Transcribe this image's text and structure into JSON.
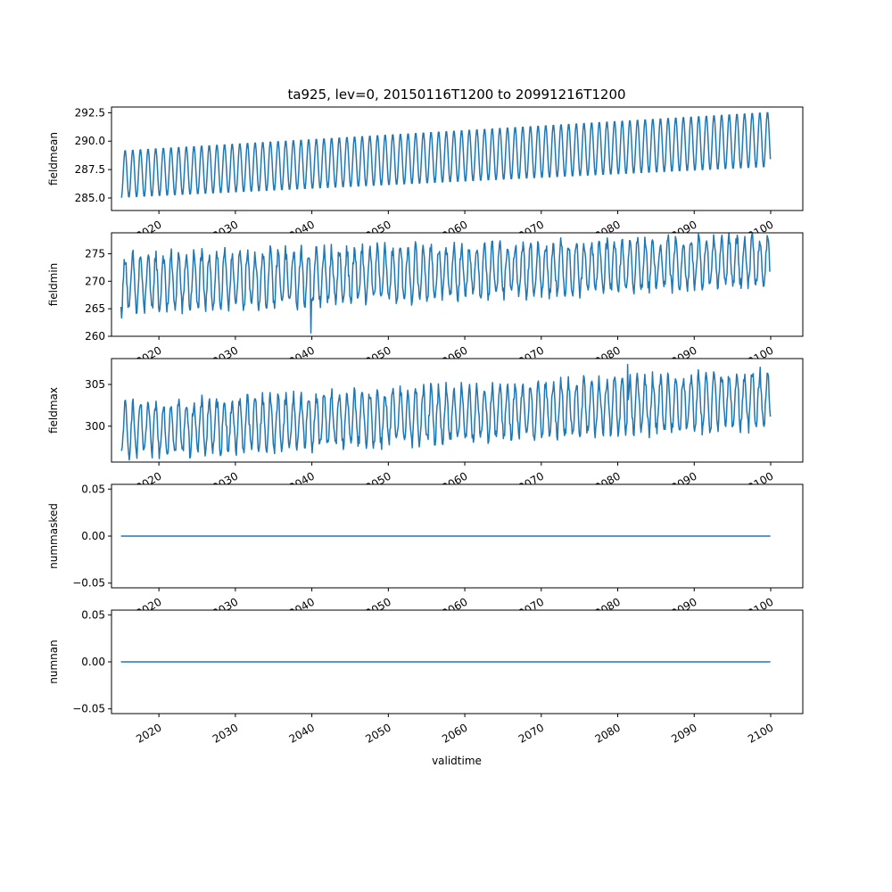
{
  "figure": {
    "title": "ta925, lev=0, 20150116T1200 to 20991216T1200",
    "xlabel": "validtime",
    "x_tick_labels": [
      "2020",
      "2030",
      "2040",
      "2050",
      "2060",
      "2070",
      "2080",
      "2090",
      "2100"
    ],
    "line_color": "#1f77b4"
  },
  "chart_data": [
    {
      "type": "line",
      "ylabel": "fieldmean",
      "xlim": [
        2013.8,
        2104.2
      ],
      "ylim": [
        283.9,
        293.0
      ],
      "yticks": [
        "285.0",
        "287.5",
        "290.0",
        "292.5"
      ],
      "ytick_values": [
        285.0,
        287.5,
        290.0,
        292.5
      ],
      "series": [
        {
          "values": {
            "start_year": 2015.04,
            "end_year": 2099.96,
            "min_first": 285.0,
            "min_last": 287.7,
            "max_first": 289.2,
            "max_last": 292.6
          }
        }
      ]
    },
    {
      "type": "line",
      "ylabel": "fieldmin",
      "xlim": [
        2013.8,
        2104.2
      ],
      "ylim": [
        260.0,
        278.8
      ],
      "yticks": [
        "260",
        "265",
        "270",
        "275"
      ],
      "ytick_values": [
        260,
        265,
        270,
        275
      ],
      "series": [
        {
          "values": {
            "start_year": 2015.04,
            "end_year": 2099.96,
            "min_first": 264.5,
            "min_last": 269.5,
            "max_first": 274.5,
            "max_last": 278.0,
            "lowest": 260.6,
            "lowest_year": 2039.9
          }
        }
      ]
    },
    {
      "type": "line",
      "ylabel": "fieldmax",
      "xlim": [
        2013.8,
        2104.2
      ],
      "ylim": [
        295.7,
        308.1
      ],
      "yticks": [
        "300",
        "305"
      ],
      "ytick_values": [
        300,
        305
      ],
      "series": [
        {
          "values": {
            "start_year": 2015.04,
            "end_year": 2099.96,
            "min_first": 296.5,
            "min_last": 300.0,
            "max_first": 302.5,
            "max_last": 306.5,
            "highest": 307.4,
            "highest_year": 2081.3
          }
        }
      ]
    },
    {
      "type": "line",
      "ylabel": "nummasked",
      "xlim": [
        2013.8,
        2104.2
      ],
      "ylim": [
        -0.055,
        0.055
      ],
      "yticks": [
        "−0.05",
        "0.00",
        "0.05"
      ],
      "ytick_values": [
        -0.05,
        0.0,
        0.05
      ],
      "series": [
        {
          "x": [
            2015.04,
            2099.96
          ],
          "values": [
            0,
            0
          ]
        }
      ]
    },
    {
      "type": "line",
      "ylabel": "numnan",
      "xlim": [
        2013.8,
        2104.2
      ],
      "ylim": [
        -0.055,
        0.055
      ],
      "yticks": [
        "−0.05",
        "0.00",
        "0.05"
      ],
      "ytick_values": [
        -0.05,
        0.0,
        0.05
      ],
      "series": [
        {
          "x": [
            2015.04,
            2099.96
          ],
          "values": [
            0,
            0
          ]
        }
      ]
    }
  ]
}
